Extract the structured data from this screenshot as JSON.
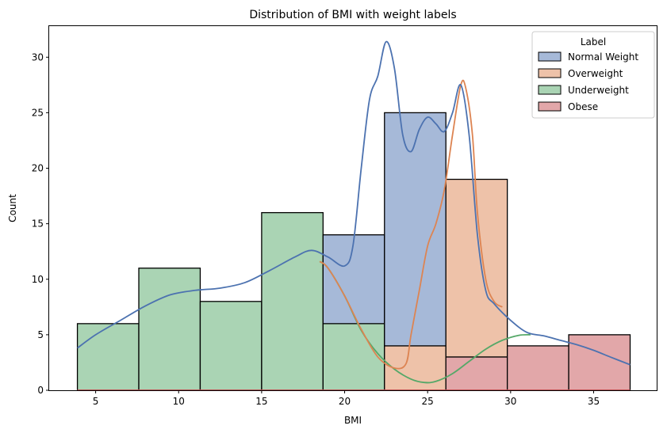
{
  "chart_data": {
    "type": "bar",
    "subtype": "stacked histogram with kde curves",
    "title": "Distribution of BMI with weight labels",
    "xlabel": "BMI",
    "ylabel": "Count",
    "xlim": [
      2.2,
      38.8
    ],
    "ylim": [
      0,
      32.8
    ],
    "xticks": [
      5,
      10,
      15,
      20,
      25,
      30,
      35
    ],
    "yticks": [
      0,
      5,
      10,
      15,
      20,
      25,
      30
    ],
    "grid": false,
    "legend": {
      "title": "Label",
      "placement": "top-right"
    },
    "bin_edges": [
      3.9,
      7.6,
      11.3,
      15.0,
      18.7,
      22.4,
      26.1,
      29.8,
      33.5,
      37.2
    ],
    "series": [
      {
        "name": "Normal Weight",
        "color": "#4c72b0",
        "values": [
          0,
          0,
          0,
          0,
          8,
          21,
          0,
          0,
          0
        ]
      },
      {
        "name": "Overweight",
        "color": "#dd8452",
        "values": [
          0,
          0,
          0,
          0,
          0,
          4,
          16,
          0,
          0
        ]
      },
      {
        "name": "Underweight",
        "color": "#55a868",
        "values": [
          6,
          11,
          8,
          16,
          6,
          0,
          0,
          0,
          0
        ]
      },
      {
        "name": "Obese",
        "color": "#c44e52",
        "values": [
          0,
          0,
          0,
          0,
          0,
          0,
          3,
          4,
          5
        ]
      }
    ],
    "kde": [
      {
        "name": "Normal Weight",
        "color": "#4c72b0",
        "x": [
          3.9,
          5,
          6.5,
          8,
          9.5,
          11,
          12.5,
          14,
          15.5,
          17,
          18,
          19,
          20,
          20.5,
          21,
          21.5,
          22,
          22.5,
          23,
          23.5,
          24,
          24.5,
          25,
          25.5,
          26,
          26.5,
          27,
          27.5,
          28,
          28.5,
          29,
          30,
          31,
          32,
          33,
          34,
          35,
          36,
          37.2
        ],
        "y": [
          3.8,
          5.0,
          6.3,
          7.6,
          8.6,
          9.0,
          9.2,
          9.7,
          10.8,
          12.0,
          12.6,
          12.0,
          11.2,
          13.0,
          20.0,
          26.2,
          28.3,
          31.4,
          29.0,
          23.0,
          21.5,
          23.5,
          24.6,
          24.0,
          23.3,
          25.0,
          27.5,
          23.0,
          14.0,
          9.0,
          7.8,
          6.3,
          5.2,
          4.9,
          4.5,
          4.1,
          3.6,
          3.0,
          2.3
        ]
      },
      {
        "name": "Overweight",
        "color": "#dd8452",
        "x": [
          18.5,
          19,
          20,
          21,
          22,
          23,
          23.7,
          24,
          24.5,
          25,
          25.5,
          26,
          26.5,
          27,
          27.3,
          27.7,
          28,
          28.5,
          29,
          29.5
        ],
        "y": [
          11.6,
          11.0,
          8.5,
          5.5,
          3.0,
          2.0,
          2.4,
          5.0,
          9.0,
          13.0,
          15.0,
          18.0,
          23.0,
          27.5,
          27.2,
          23.0,
          16.0,
          10.0,
          8.0,
          7.5
        ]
      },
      {
        "name": "Underweight",
        "color": "#55a868",
        "x": [
          18.5,
          19,
          20,
          21,
          22,
          23,
          24,
          24.8,
          25.5,
          26.5,
          27.5,
          28.5,
          29.5,
          30.5,
          31.2
        ],
        "y": [
          11.6,
          11.0,
          8.5,
          5.4,
          3.3,
          1.9,
          1.0,
          0.7,
          0.8,
          1.5,
          2.6,
          3.7,
          4.5,
          4.95,
          5.0
        ]
      },
      {
        "name": "Obese",
        "color": "#c44e52",
        "x": [
          3.9,
          37.2
        ],
        "y": [
          0,
          0
        ]
      }
    ]
  }
}
